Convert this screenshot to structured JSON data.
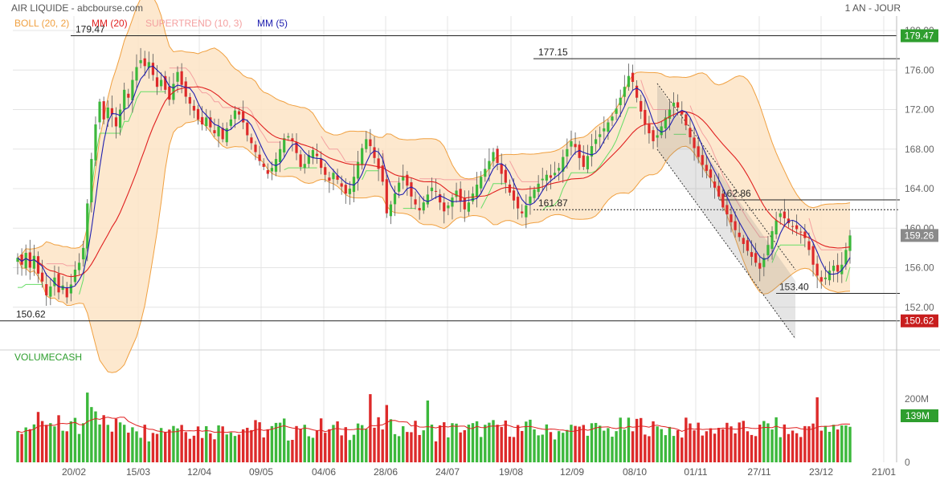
{
  "header": {
    "title": "AIR LIQUIDE - abcbourse.com",
    "period": "1 AN - JOUR"
  },
  "legend": [
    {
      "label": "BOLL (20, 2)",
      "color": "#f0a040"
    },
    {
      "label": "MM (20)",
      "color": "#e02020"
    },
    {
      "label": "SUPERTREND (10, 3)",
      "color": "#f4a0a0"
    },
    {
      "label": "MM (5)",
      "color": "#2020b0"
    }
  ],
  "colors": {
    "up": "#3cb83c",
    "down": "#dd2a2a",
    "boll_fill": "#fde4c6",
    "boll_line": "#f0a040",
    "ma20": "#e02020",
    "ma5": "#2020b0",
    "supertrend_up": "#66dd66",
    "supertrend_down": "#f4a0a0",
    "grid": "#e4e4e4",
    "price_tag": "#2e9e2e",
    "low_tag": "#c81e1e"
  },
  "chart_data": {
    "type": "candlestick",
    "x_ticks": [
      "20/02",
      "15/03",
      "12/04",
      "09/05",
      "04/06",
      "28/06",
      "24/07",
      "19/08",
      "12/09",
      "08/10",
      "01/11",
      "27/11",
      "23/12",
      "21/01"
    ],
    "price_axis": {
      "min": 148,
      "max": 180,
      "ticks": [
        "180.00",
        "176.00",
        "172.00",
        "168.00",
        "164.00",
        "160.00",
        "156.00",
        "152.00"
      ]
    },
    "last_price": "159.26",
    "levels": [
      {
        "value": 179.47,
        "label": "179.47",
        "style": "solid",
        "tag": "179.47"
      },
      {
        "value": 177.15,
        "label": "177.15",
        "style": "solid"
      },
      {
        "value": 162.86,
        "label": "162.86",
        "style": "solid"
      },
      {
        "value": 161.87,
        "label": "161.87",
        "style": "dotted"
      },
      {
        "value": 153.4,
        "label": "153.40",
        "style": "solid"
      },
      {
        "value": 150.62,
        "label": "150.62",
        "style": "solid",
        "tag": "150.62"
      }
    ],
    "closes": [
      157.0,
      156.3,
      157.5,
      156.0,
      157.2,
      155.4,
      154.6,
      153.2,
      154.1,
      155.0,
      153.5,
      154.2,
      153.0,
      154.3,
      155.8,
      156.5,
      158.0,
      162.5,
      167.0,
      170.5,
      172.8,
      171.0,
      172.2,
      171.5,
      170.3,
      172.0,
      174.0,
      173.2,
      175.0,
      176.3,
      177.0,
      176.4,
      176.8,
      175.5,
      174.3,
      175.0,
      174.0,
      173.0,
      174.6,
      175.8,
      174.5,
      173.3,
      172.6,
      171.9,
      171.0,
      170.5,
      171.2,
      170.2,
      169.6,
      170.3,
      169.0,
      170.1,
      171.0,
      171.9,
      171.5,
      170.7,
      169.4,
      168.6,
      167.7,
      166.8,
      166.2,
      165.5,
      166.1,
      167.0,
      168.0,
      169.1,
      169.3,
      168.8,
      167.6,
      166.2,
      166.5,
      167.4,
      167.9,
      167.3,
      166.1,
      165.4,
      164.8,
      165.6,
      164.9,
      164.2,
      163.5,
      164.0,
      165.2,
      166.7,
      168.1,
      169.0,
      168.3,
      167.1,
      166.0,
      164.7,
      161.5,
      162.4,
      163.5,
      164.6,
      165.2,
      164.3,
      163.2,
      162.4,
      161.8,
      162.6,
      163.4,
      164.1,
      163.7,
      162.6,
      161.7,
      162.3,
      163.1,
      163.8,
      162.7,
      161.9,
      162.6,
      163.5,
      164.4,
      165.2,
      166.0,
      166.8,
      167.7,
      166.6,
      165.5,
      164.6,
      163.6,
      162.8,
      162.0,
      161.5,
      162.3,
      163.2,
      163.9,
      164.5,
      165.0,
      165.4,
      165.1,
      165.6,
      166.1,
      167.2,
      168.0,
      168.8,
      168.2,
      167.1,
      166.2,
      167.3,
      168.3,
      169.0,
      169.5,
      170.1,
      170.7,
      171.3,
      172.1,
      173.2,
      174.3,
      175.4,
      174.8,
      173.2,
      171.8,
      170.5,
      169.6,
      168.8,
      169.4,
      170.3,
      171.2,
      172.0,
      172.7,
      172.2,
      171.5,
      170.4,
      169.2,
      168.1,
      167.2,
      166.4,
      165.8,
      165.1,
      164.1,
      163.2,
      162.1,
      161.4,
      160.6,
      159.8,
      159.1,
      158.4,
      157.7,
      157.1,
      156.5,
      155.9,
      157.0,
      158.3,
      159.7,
      160.8,
      161.5,
      161.0,
      160.5,
      160.2,
      159.9,
      159.6,
      159.0,
      157.8,
      156.3,
      155.2,
      154.6,
      155.0,
      155.7,
      156.2,
      155.6,
      156.3,
      157.8,
      159.26
    ],
    "volume_axis": {
      "ticks": [
        "200M",
        "0"
      ]
    },
    "volume_label": "VOLUMECASH",
    "volume_last": "139M"
  }
}
